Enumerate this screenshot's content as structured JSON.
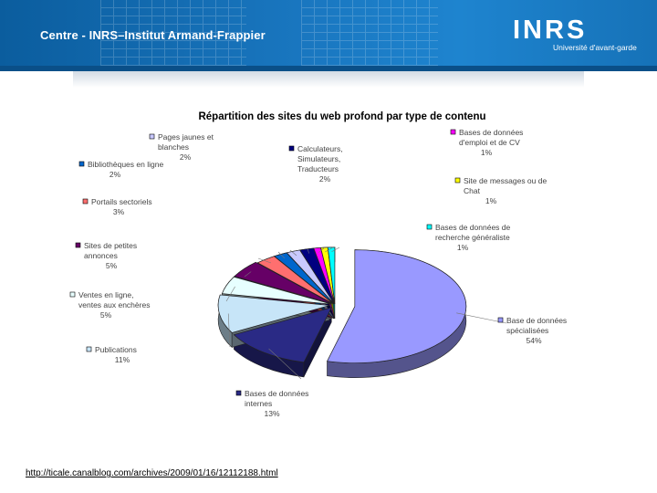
{
  "header": {
    "org_title": "Centre - INRS–Institut Armand-Frappier",
    "logo_main": "INRS",
    "logo_sub": "Université d'avant-garde"
  },
  "chart_data": {
    "type": "pie",
    "title": "Répartition des sites du web profond par type de contenu",
    "start_angle_deg": -90,
    "series": [
      {
        "name": "Base de données spécialisées",
        "value": 54,
        "label": "54%",
        "color": "#9999ff"
      },
      {
        "name": "Bases de données internes",
        "value": 13,
        "label": "13%",
        "color": "#2a2a85"
      },
      {
        "name": "Publications",
        "value": 11,
        "label": "11%",
        "color": "#c7e5f8"
      },
      {
        "name": "Ventes en ligne, ventes aux enchères",
        "value": 5,
        "label": "5%",
        "color": "#e7ffff"
      },
      {
        "name": "Sites de petites annonces",
        "value": 5,
        "label": "5%",
        "color": "#660066"
      },
      {
        "name": "Portails sectoriels",
        "value": 3,
        "label": "3%",
        "color": "#ff6f6f"
      },
      {
        "name": "Bibliothèques en ligne",
        "value": 2,
        "label": "2%",
        "color": "#0066cc"
      },
      {
        "name": "Pages jaunes et blanches",
        "value": 2,
        "label": "2%",
        "color": "#c9c9ff"
      },
      {
        "name": "Calculateurs, Simulateurs, Traducteurs",
        "value": 2,
        "label": "2%",
        "color": "#000080"
      },
      {
        "name": "Bases de données d'emploi et de CV",
        "value": 1,
        "label": "1%",
        "color": "#ff00ff"
      },
      {
        "name": "Site de messages ou de Chat",
        "value": 1,
        "label": "1%",
        "color": "#ffff00"
      },
      {
        "name": "Bases de données de recherche généraliste",
        "value": 1,
        "label": "1%",
        "color": "#00ffff"
      }
    ]
  },
  "source_link": "http://ticale.canalblog.com/archives/2009/01/16/12112188.html"
}
